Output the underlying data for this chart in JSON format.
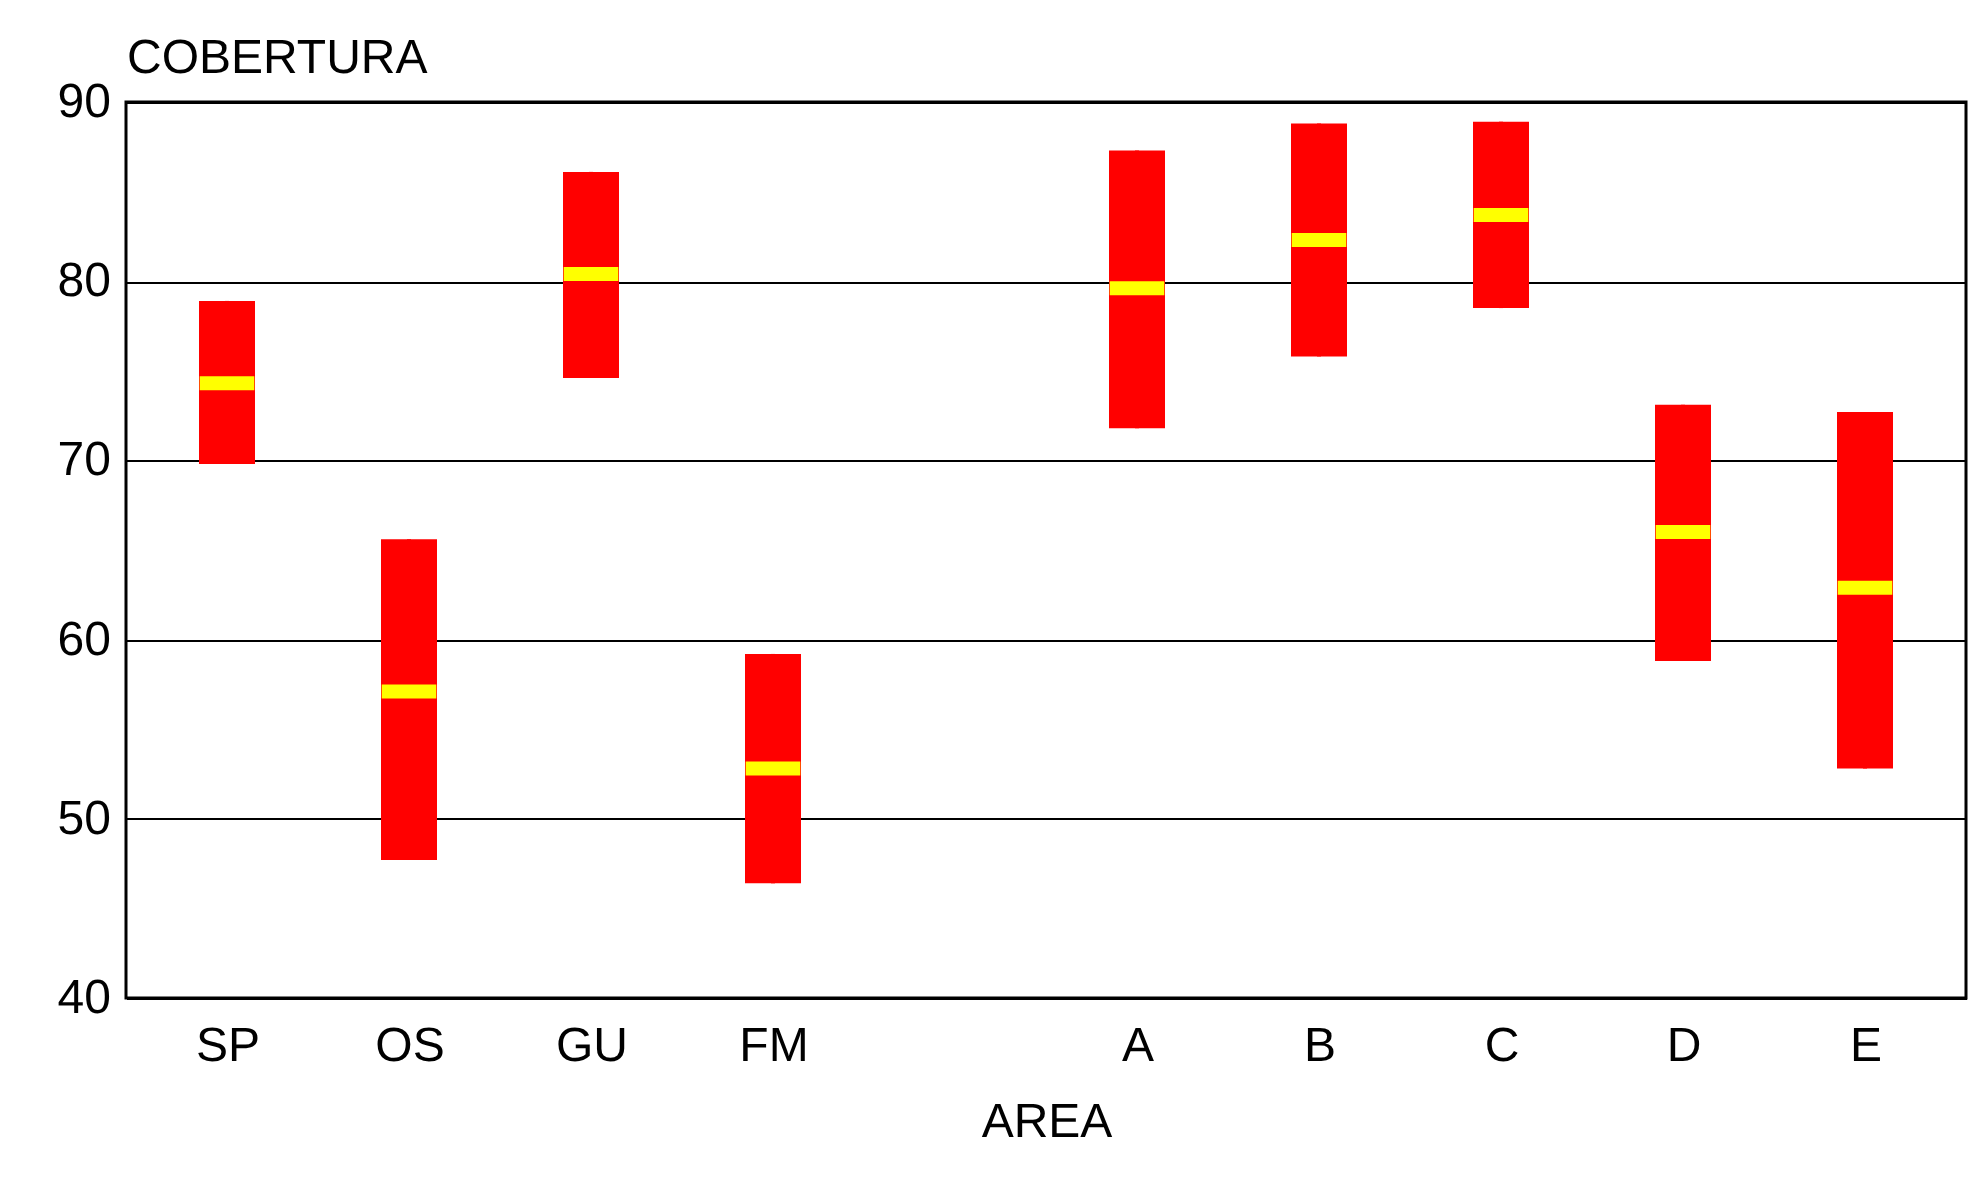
{
  "chart_data": {
    "type": "box",
    "ylabel": "COBERTURA",
    "xlabel": "AREA",
    "categories": [
      "SP",
      "OS",
      "GU",
      "FM",
      null,
      "A",
      "B",
      "C",
      "D",
      "E"
    ],
    "series": [
      {
        "color": "#ff0000",
        "boxes": [
          {
            "low": 69.8,
            "q1": 69.8,
            "median": 74.3,
            "q3": 78.9,
            "high": 78.9
          },
          {
            "low": 47.7,
            "q1": 47.7,
            "median": 57.1,
            "q3": 65.6,
            "high": 65.6
          },
          {
            "low": 74.6,
            "q1": 74.6,
            "median": 80.4,
            "q3": 86.1,
            "high": 86.1
          },
          {
            "low": 46.4,
            "q1": 46.4,
            "median": 52.8,
            "q3": 59.2,
            "high": 59.2
          },
          null,
          {
            "low": 71.8,
            "q1": 71.8,
            "median": 79.6,
            "q3": 87.3,
            "high": 87.3
          },
          {
            "low": 75.8,
            "q1": 75.8,
            "median": 82.3,
            "q3": 88.8,
            "high": 88.8
          },
          {
            "low": 78.5,
            "q1": 78.5,
            "median": 83.7,
            "q3": 88.9,
            "high": 88.9
          },
          {
            "low": 58.8,
            "q1": 58.8,
            "median": 66.0,
            "q3": 73.1,
            "high": 73.1
          },
          {
            "low": 52.8,
            "q1": 52.8,
            "median": 62.9,
            "q3": 72.7,
            "high": 72.7
          }
        ]
      }
    ],
    "ylim": [
      40,
      90
    ],
    "yticks": [
      40,
      50,
      60,
      70,
      80,
      90
    ],
    "grid": "y"
  }
}
